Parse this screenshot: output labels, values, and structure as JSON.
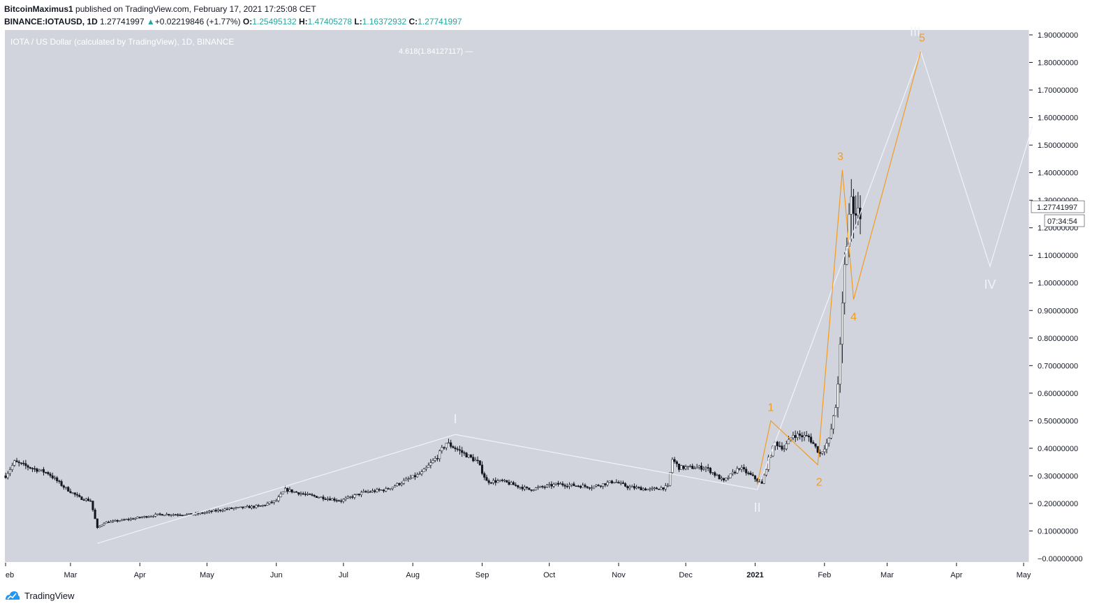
{
  "header": {
    "author": "BitcoinMaximus1",
    "published_text": "published on TradingView.com, February 17, 2021 17:25:08 CET",
    "symbol": "BINANCE:IOTAUSD, 1D",
    "last_price": "1.27741997",
    "change": "+0.02219846 (+1.77%)",
    "o_label": "O:",
    "o": "1.25495132",
    "h_label": "H:",
    "h": "1.47405278",
    "l_label": "L:",
    "l": "1.16372932",
    "c_label": "C:",
    "c": "1.27741997"
  },
  "chart_data": {
    "type": "candlestick",
    "legend": "IOTA / US Dollar (calculated by TradingView), 1D, BINANCE",
    "fib_label": "4.618(1.84127117) —",
    "currency": "USD",
    "ylim": [
      0,
      1.9
    ],
    "xlim": [
      "2020-02-01",
      "2021-05-01"
    ],
    "yticks": [
      "0.10000000",
      "0.20000000",
      "0.30000000",
      "0.40000000",
      "0.50000000",
      "0.60000000",
      "0.70000000",
      "0.80000000",
      "0.90000000",
      "1.00000000",
      "1.10000000",
      "1.20000000",
      "1.30000000",
      "1.40000000",
      "1.50000000",
      "1.60000000",
      "1.70000000",
      "1.80000000",
      "1.90000000"
    ],
    "y_zero_label": "−0.00000000",
    "xticks": [
      {
        "label": "eb",
        "date": "2020-02-01"
      },
      {
        "label": "Mar",
        "date": "2020-03-01"
      },
      {
        "label": "Apr",
        "date": "2020-04-01"
      },
      {
        "label": "May",
        "date": "2020-05-01"
      },
      {
        "label": "Jun",
        "date": "2020-06-01"
      },
      {
        "label": "Jul",
        "date": "2020-07-01"
      },
      {
        "label": "Aug",
        "date": "2020-08-01"
      },
      {
        "label": "Sep",
        "date": "2020-09-01"
      },
      {
        "label": "Oct",
        "date": "2020-10-01"
      },
      {
        "label": "Nov",
        "date": "2020-11-01"
      },
      {
        "label": "Dec",
        "date": "2020-12-01"
      },
      {
        "label": "2021",
        "date": "2021-01-01",
        "bold": true
      },
      {
        "label": "Feb",
        "date": "2021-02-01"
      },
      {
        "label": "Mar",
        "date": "2021-03-01"
      },
      {
        "label": "Apr",
        "date": "2021-04-01"
      },
      {
        "label": "May",
        "date": "2021-05-01"
      }
    ],
    "price_keypoints": [
      [
        "2020-02-01",
        0.3
      ],
      [
        "2020-02-05",
        0.35
      ],
      [
        "2020-02-12",
        0.33
      ],
      [
        "2020-02-20",
        0.31
      ],
      [
        "2020-02-27",
        0.26
      ],
      [
        "2020-03-05",
        0.22
      ],
      [
        "2020-03-10",
        0.21
      ],
      [
        "2020-03-13",
        0.11
      ],
      [
        "2020-03-16",
        0.13
      ],
      [
        "2020-03-25",
        0.14
      ],
      [
        "2020-04-10",
        0.16
      ],
      [
        "2020-04-25",
        0.16
      ],
      [
        "2020-05-10",
        0.18
      ],
      [
        "2020-05-25",
        0.19
      ],
      [
        "2020-06-01",
        0.21
      ],
      [
        "2020-06-05",
        0.25
      ],
      [
        "2020-06-15",
        0.23
      ],
      [
        "2020-06-30",
        0.21
      ],
      [
        "2020-07-10",
        0.24
      ],
      [
        "2020-07-20",
        0.25
      ],
      [
        "2020-07-28",
        0.28
      ],
      [
        "2020-08-05",
        0.31
      ],
      [
        "2020-08-12",
        0.37
      ],
      [
        "2020-08-16",
        0.42
      ],
      [
        "2020-08-22",
        0.39
      ],
      [
        "2020-08-30",
        0.35
      ],
      [
        "2020-09-03",
        0.28
      ],
      [
        "2020-09-10",
        0.28
      ],
      [
        "2020-09-22",
        0.25
      ],
      [
        "2020-10-05",
        0.27
      ],
      [
        "2020-10-20",
        0.26
      ],
      [
        "2020-10-30",
        0.28
      ],
      [
        "2020-11-05",
        0.26
      ],
      [
        "2020-11-15",
        0.25
      ],
      [
        "2020-11-23",
        0.26
      ],
      [
        "2020-11-25",
        0.36
      ],
      [
        "2020-11-28",
        0.33
      ],
      [
        "2020-12-10",
        0.33
      ],
      [
        "2020-12-18",
        0.28
      ],
      [
        "2020-12-25",
        0.33
      ],
      [
        "2021-01-01",
        0.29
      ],
      [
        "2021-01-04",
        0.27
      ],
      [
        "2021-01-07",
        0.36
      ],
      [
        "2021-01-10",
        0.42
      ],
      [
        "2021-01-14",
        0.4
      ],
      [
        "2021-01-18",
        0.45
      ],
      [
        "2021-01-25",
        0.44
      ],
      [
        "2021-01-30",
        0.38
      ],
      [
        "2021-02-03",
        0.43
      ],
      [
        "2021-02-06",
        0.55
      ],
      [
        "2021-02-08",
        0.75
      ],
      [
        "2021-02-10",
        1.05
      ],
      [
        "2021-02-12",
        1.25
      ],
      [
        "2021-02-14",
        1.3
      ],
      [
        "2021-02-16",
        1.25
      ],
      [
        "2021-02-17",
        1.28
      ]
    ],
    "last_price_label": "1.27741997",
    "countdown": "07:34:54",
    "wave_white": [
      {
        "date": "2020-03-13",
        "price": 0.055,
        "label": ""
      },
      {
        "date": "2020-08-20",
        "price": 0.45,
        "label": "I"
      },
      {
        "date": "2021-01-02",
        "price": 0.25,
        "label": "II"
      },
      {
        "date": "2021-03-16",
        "price": 1.84,
        "label": "III"
      },
      {
        "date": "2021-04-16",
        "price": 1.06,
        "label": "IV"
      },
      {
        "date": "2021-05-05",
        "price": 1.57,
        "label": ""
      }
    ],
    "wave_orange": [
      {
        "date": "2021-01-02",
        "price": 0.27,
        "label": ""
      },
      {
        "date": "2021-01-08",
        "price": 0.5,
        "label": "1"
      },
      {
        "date": "2021-01-29",
        "price": 0.34,
        "label": "2"
      },
      {
        "date": "2021-02-09",
        "price": 1.41,
        "label": "3"
      },
      {
        "date": "2021-02-14",
        "price": 0.94,
        "label": "4"
      },
      {
        "date": "2021-03-16",
        "price": 1.84,
        "label": "5"
      }
    ],
    "colors": {
      "background": "#d1d4dc",
      "candle": "#131722",
      "wave_white": "#f0f3fa",
      "wave_orange": "#f39c1e",
      "axis_text": "#131722"
    }
  },
  "footer": {
    "brand": "TradingView"
  }
}
